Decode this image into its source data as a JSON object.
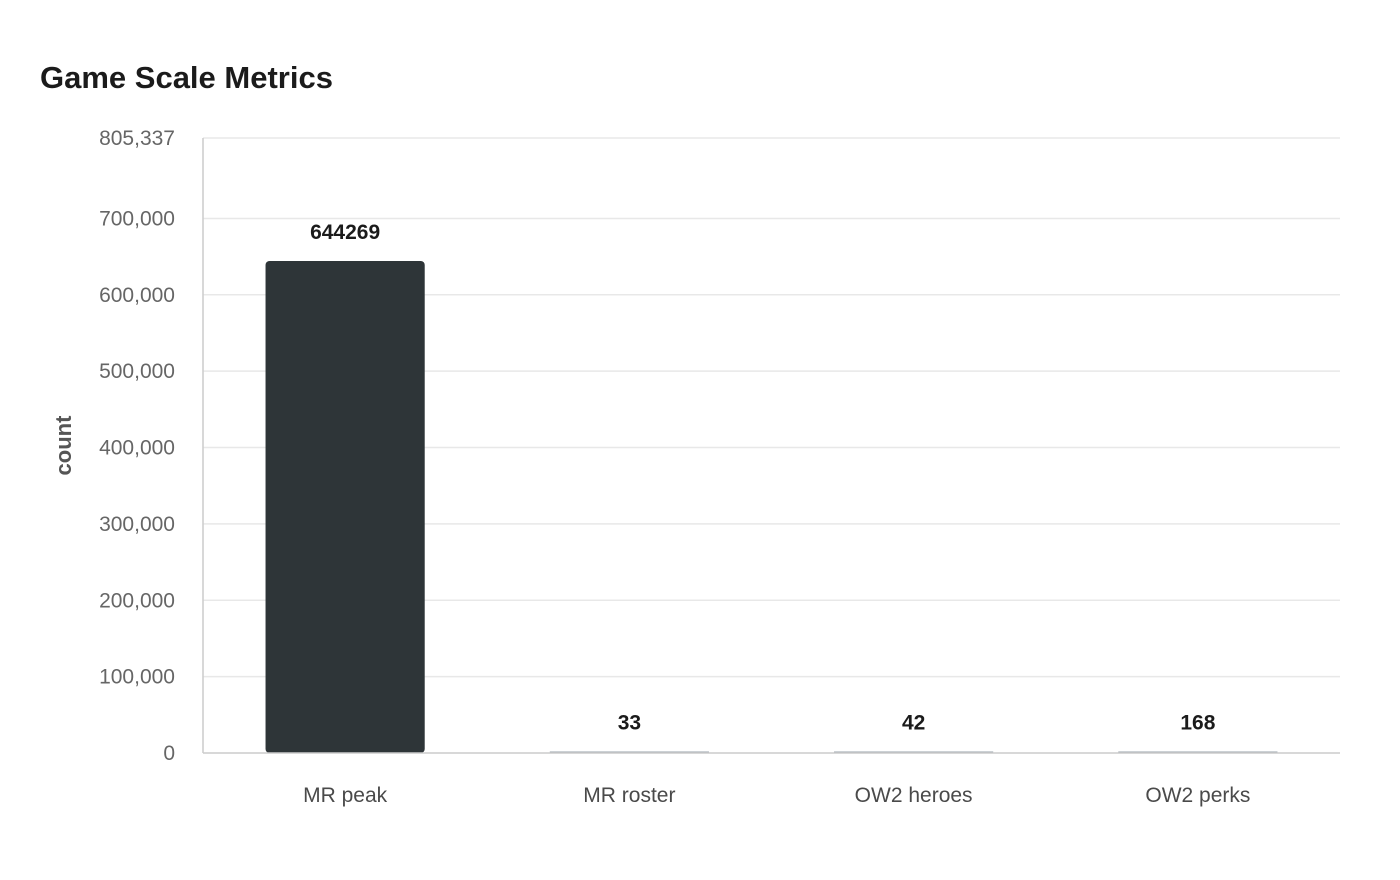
{
  "chart_data": {
    "type": "bar",
    "title": "Game Scale Metrics",
    "xlabel": "",
    "ylabel": "count",
    "categories": [
      "MR peak",
      "MR roster",
      "OW2 heroes",
      "OW2 perks"
    ],
    "values": [
      644269,
      33,
      42,
      168
    ],
    "data_labels": [
      "644269",
      "33",
      "42",
      "168"
    ],
    "ylim": [
      0,
      805337
    ],
    "yticks": [
      0,
      100000,
      200000,
      300000,
      400000,
      500000,
      600000,
      700000,
      805337
    ],
    "ytick_labels": [
      "0",
      "100,000",
      "200,000",
      "300,000",
      "400,000",
      "500,000",
      "600,000",
      "700,000",
      "805,337"
    ],
    "grid": true,
    "legend": "none",
    "colors": {
      "highlight_bar": "#2e3538",
      "bar": "#9aa3ab",
      "grid": "#e8e8e8",
      "axis": "#cccccc"
    }
  }
}
